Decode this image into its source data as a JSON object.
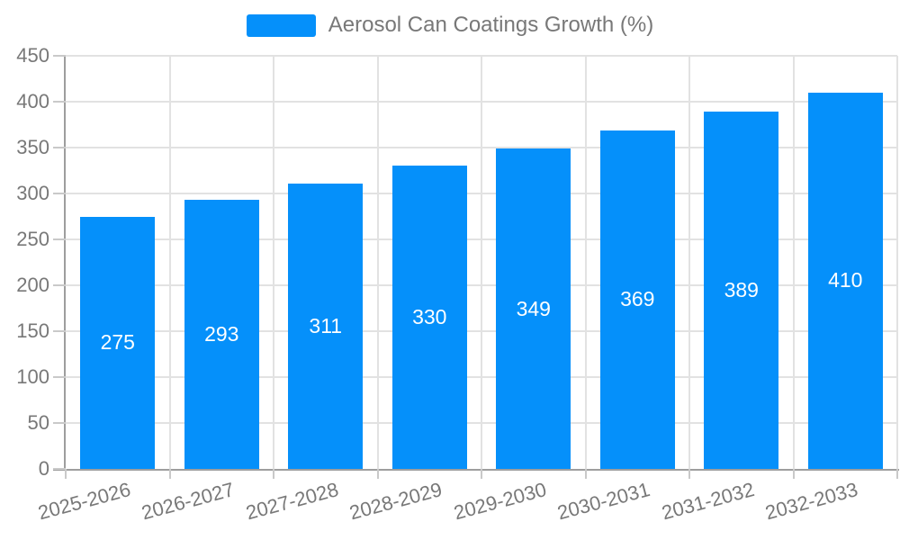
{
  "legend": {
    "label": "Aerosol Can Coatings Growth (%)"
  },
  "chart_data": {
    "type": "bar",
    "title": "",
    "categories": [
      "2025-2026",
      "2026-2027",
      "2027-2028",
      "2028-2029",
      "2029-2030",
      "2030-2031",
      "2031-2032",
      "2032-2033"
    ],
    "series": [
      {
        "name": "Aerosol Can Coatings Growth (%)",
        "values": [
          275,
          293,
          311,
          330,
          349,
          369,
          389,
          410
        ]
      }
    ],
    "value_labels": {
      "visible": true,
      "position": "inside-middle",
      "color": "#ffffff"
    },
    "xlabel": "",
    "ylabel": "",
    "ylim": [
      0,
      450
    ],
    "yticks": [
      0,
      50,
      100,
      150,
      200,
      250,
      300,
      350,
      400,
      450
    ],
    "grid": true,
    "x_label_rotation_deg": -15,
    "legend_position": "top-center",
    "colors": {
      "bar": "#0590fa",
      "axis_text": "#787878",
      "axis_line": "#9e9e9e",
      "gridline": "#e2e2e2",
      "background": "#ffffff"
    }
  }
}
